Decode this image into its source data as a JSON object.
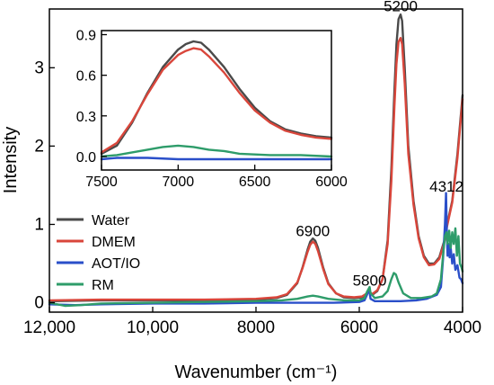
{
  "chart_data": [
    {
      "type": "line",
      "xlabel": "Wavenumber (cm⁻¹)",
      "ylabel": "Intensity",
      "xlim": [
        12000,
        4000
      ],
      "ylim": [
        -0.12,
        3.75
      ],
      "x_reversed": true,
      "x_ticks": [
        12000,
        10000,
        8000,
        6000,
        4000
      ],
      "x_tick_labels": [
        "12,000",
        "10,000",
        "8000",
        "6000",
        "4000"
      ],
      "y_ticks": [
        0,
        1,
        2,
        3
      ],
      "y_tick_labels": [
        "0",
        "1",
        "2",
        "3"
      ],
      "annotations": [
        {
          "text": "6900",
          "x": 6900,
          "y": 0.85
        },
        {
          "text": "5800",
          "x": 5800,
          "y": 0.22
        },
        {
          "text": "5200",
          "x": 5200,
          "y": 3.72
        },
        {
          "text": "4312",
          "x": 4312,
          "y": 1.42
        }
      ],
      "legend": {
        "position": "left",
        "entries": [
          "Water",
          "DMEM",
          "AOT/IO",
          "RM"
        ]
      },
      "series": [
        {
          "name": "Water",
          "color": "#4a4a4a",
          "points": [
            [
              12000,
              0.02
            ],
            [
              11000,
              0.03
            ],
            [
              10000,
              0.03
            ],
            [
              9000,
              0.03
            ],
            [
              8000,
              0.04
            ],
            [
              7600,
              0.06
            ],
            [
              7400,
              0.1
            ],
            [
              7200,
              0.25
            ],
            [
              7100,
              0.45
            ],
            [
              7000,
              0.68
            ],
            [
              6950,
              0.78
            ],
            [
              6900,
              0.82
            ],
            [
              6850,
              0.79
            ],
            [
              6800,
              0.7
            ],
            [
              6700,
              0.45
            ],
            [
              6600,
              0.25
            ],
            [
              6450,
              0.12
            ],
            [
              6300,
              0.07
            ],
            [
              6100,
              0.06
            ],
            [
              5950,
              0.07
            ],
            [
              5850,
              0.12
            ],
            [
              5800,
              0.14
            ],
            [
              5750,
              0.1
            ],
            [
              5650,
              0.15
            ],
            [
              5550,
              0.3
            ],
            [
              5450,
              0.8
            ],
            [
              5380,
              1.7
            ],
            [
              5320,
              2.7
            ],
            [
              5280,
              3.3
            ],
            [
              5240,
              3.62
            ],
            [
              5200,
              3.68
            ],
            [
              5170,
              3.6
            ],
            [
              5120,
              3.0
            ],
            [
              5050,
              2.0
            ],
            [
              4950,
              1.3
            ],
            [
              4850,
              0.85
            ],
            [
              4750,
              0.6
            ],
            [
              4650,
              0.5
            ],
            [
              4550,
              0.5
            ],
            [
              4450,
              0.58
            ],
            [
              4350,
              0.8
            ],
            [
              4300,
              1.0
            ],
            [
              4200,
              1.3
            ],
            [
              4100,
              1.9
            ],
            [
              4000,
              2.65
            ]
          ]
        },
        {
          "name": "DMEM",
          "color": "#d9463b",
          "points": [
            [
              12000,
              0.03
            ],
            [
              11000,
              0.04
            ],
            [
              10000,
              0.04
            ],
            [
              9000,
              0.04
            ],
            [
              8000,
              0.05
            ],
            [
              7600,
              0.07
            ],
            [
              7400,
              0.11
            ],
            [
              7200,
              0.26
            ],
            [
              7100,
              0.44
            ],
            [
              7000,
              0.65
            ],
            [
              6950,
              0.74
            ],
            [
              6900,
              0.78
            ],
            [
              6850,
              0.75
            ],
            [
              6800,
              0.66
            ],
            [
              6700,
              0.43
            ],
            [
              6600,
              0.24
            ],
            [
              6450,
              0.12
            ],
            [
              6300,
              0.08
            ],
            [
              6100,
              0.07
            ],
            [
              5950,
              0.08
            ],
            [
              5850,
              0.12
            ],
            [
              5800,
              0.14
            ],
            [
              5750,
              0.11
            ],
            [
              5650,
              0.16
            ],
            [
              5550,
              0.3
            ],
            [
              5450,
              0.75
            ],
            [
              5380,
              1.55
            ],
            [
              5320,
              2.5
            ],
            [
              5280,
              3.05
            ],
            [
              5240,
              3.33
            ],
            [
              5200,
              3.38
            ],
            [
              5170,
              3.3
            ],
            [
              5120,
              2.8
            ],
            [
              5050,
              1.9
            ],
            [
              4950,
              1.25
            ],
            [
              4850,
              0.82
            ],
            [
              4750,
              0.58
            ],
            [
              4650,
              0.48
            ],
            [
              4550,
              0.49
            ],
            [
              4450,
              0.56
            ],
            [
              4350,
              0.78
            ],
            [
              4300,
              0.98
            ],
            [
              4200,
              1.28
            ],
            [
              4100,
              1.85
            ],
            [
              4000,
              2.6
            ]
          ]
        },
        {
          "name": "AOT/IO",
          "color": "#2a4fc9",
          "points": [
            [
              12000,
              -0.02
            ],
            [
              11500,
              -0.03
            ],
            [
              11000,
              -0.02
            ],
            [
              10000,
              -0.01
            ],
            [
              9000,
              -0.01
            ],
            [
              8000,
              0.0
            ],
            [
              7000,
              0.0
            ],
            [
              6500,
              0.0
            ],
            [
              6000,
              0.01
            ],
            [
              5900,
              0.03
            ],
            [
              5850,
              0.1
            ],
            [
              5820,
              0.16
            ],
            [
              5800,
              0.13
            ],
            [
              5780,
              0.05
            ],
            [
              5700,
              0.02
            ],
            [
              5500,
              0.02
            ],
            [
              5200,
              0.02
            ],
            [
              4900,
              0.03
            ],
            [
              4700,
              0.05
            ],
            [
              4500,
              0.1
            ],
            [
              4420,
              0.2
            ],
            [
              4380,
              0.55
            ],
            [
              4340,
              1.0
            ],
            [
              4320,
              1.4
            ],
            [
              4305,
              0.9
            ],
            [
              4290,
              0.6
            ],
            [
              4270,
              0.75
            ],
            [
              4250,
              0.58
            ],
            [
              4230,
              0.7
            ],
            [
              4200,
              0.5
            ],
            [
              4170,
              0.62
            ],
            [
              4140,
              0.42
            ],
            [
              4100,
              0.48
            ],
            [
              4060,
              0.32
            ],
            [
              4030,
              0.3
            ],
            [
              4000,
              0.25
            ]
          ]
        },
        {
          "name": "RM",
          "color": "#2e9c6a",
          "points": [
            [
              12000,
              0.0
            ],
            [
              11700,
              -0.04
            ],
            [
              11400,
              -0.03
            ],
            [
              11000,
              -0.01
            ],
            [
              10000,
              0.0
            ],
            [
              9000,
              0.01
            ],
            [
              8000,
              0.02
            ],
            [
              7500,
              0.03
            ],
            [
              7200,
              0.05
            ],
            [
              7000,
              0.08
            ],
            [
              6900,
              0.09
            ],
            [
              6800,
              0.08
            ],
            [
              6600,
              0.05
            ],
            [
              6300,
              0.03
            ],
            [
              6000,
              0.03
            ],
            [
              5900,
              0.06
            ],
            [
              5850,
              0.14
            ],
            [
              5800,
              0.2
            ],
            [
              5780,
              0.12
            ],
            [
              5700,
              0.06
            ],
            [
              5550,
              0.08
            ],
            [
              5450,
              0.15
            ],
            [
              5380,
              0.3
            ],
            [
              5330,
              0.38
            ],
            [
              5290,
              0.36
            ],
            [
              5240,
              0.26
            ],
            [
              5150,
              0.12
            ],
            [
              5000,
              0.06
            ],
            [
              4800,
              0.06
            ],
            [
              4600,
              0.08
            ],
            [
              4500,
              0.12
            ],
            [
              4420,
              0.3
            ],
            [
              4380,
              0.6
            ],
            [
              4340,
              0.85
            ],
            [
              4310,
              0.9
            ],
            [
              4290,
              0.75
            ],
            [
              4260,
              0.92
            ],
            [
              4230,
              0.7
            ],
            [
              4200,
              0.9
            ],
            [
              4170,
              0.75
            ],
            [
              4140,
              0.95
            ],
            [
              4110,
              0.6
            ],
            [
              4080,
              0.85
            ],
            [
              4050,
              0.5
            ],
            [
              4020,
              0.45
            ],
            [
              4000,
              0.4
            ]
          ]
        }
      ]
    },
    {
      "type": "line",
      "xlim": [
        7500,
        6000
      ],
      "ylim": [
        -0.1,
        0.93
      ],
      "x_reversed": true,
      "x_ticks": [
        7500,
        7000,
        6500,
        6000
      ],
      "x_tick_labels": [
        "7500",
        "7000",
        "6500",
        "6000"
      ],
      "y_ticks": [
        0.0,
        0.3,
        0.6,
        0.9
      ],
      "y_tick_labels": [
        "0.0",
        "0.3",
        "0.6",
        "0.9"
      ],
      "series": [
        {
          "name": "Water",
          "color": "#4a4a4a",
          "points": [
            [
              7500,
              0.02
            ],
            [
              7400,
              0.08
            ],
            [
              7300,
              0.25
            ],
            [
              7200,
              0.47
            ],
            [
              7100,
              0.66
            ],
            [
              7000,
              0.79
            ],
            [
              6950,
              0.83
            ],
            [
              6900,
              0.85
            ],
            [
              6850,
              0.84
            ],
            [
              6800,
              0.79
            ],
            [
              6700,
              0.66
            ],
            [
              6600,
              0.5
            ],
            [
              6500,
              0.36
            ],
            [
              6400,
              0.26
            ],
            [
              6300,
              0.2
            ],
            [
              6200,
              0.17
            ],
            [
              6100,
              0.15
            ],
            [
              6000,
              0.14
            ]
          ]
        },
        {
          "name": "DMEM",
          "color": "#d9463b",
          "points": [
            [
              7500,
              0.03
            ],
            [
              7400,
              0.1
            ],
            [
              7300,
              0.26
            ],
            [
              7200,
              0.46
            ],
            [
              7100,
              0.64
            ],
            [
              7000,
              0.75
            ],
            [
              6950,
              0.78
            ],
            [
              6900,
              0.8
            ],
            [
              6850,
              0.79
            ],
            [
              6800,
              0.74
            ],
            [
              6700,
              0.62
            ],
            [
              6600,
              0.47
            ],
            [
              6500,
              0.34
            ],
            [
              6400,
              0.25
            ],
            [
              6300,
              0.19
            ],
            [
              6200,
              0.16
            ],
            [
              6100,
              0.14
            ],
            [
              6000,
              0.13
            ]
          ]
        },
        {
          "name": "AOT/IO",
          "color": "#2a4fc9",
          "points": [
            [
              7500,
              -0.02
            ],
            [
              7400,
              -0.01
            ],
            [
              7200,
              -0.01
            ],
            [
              7000,
              -0.02
            ],
            [
              6800,
              -0.02
            ],
            [
              6600,
              -0.02
            ],
            [
              6400,
              -0.02
            ],
            [
              6200,
              -0.02
            ],
            [
              6000,
              -0.02
            ]
          ]
        },
        {
          "name": "RM",
          "color": "#2e9c6a",
          "points": [
            [
              7500,
              0.0
            ],
            [
              7400,
              0.01
            ],
            [
              7300,
              0.03
            ],
            [
              7200,
              0.05
            ],
            [
              7100,
              0.07
            ],
            [
              7000,
              0.08
            ],
            [
              6900,
              0.07
            ],
            [
              6800,
              0.05
            ],
            [
              6700,
              0.04
            ],
            [
              6600,
              0.02
            ],
            [
              6400,
              0.01
            ],
            [
              6200,
              0.01
            ],
            [
              6000,
              0.0
            ]
          ]
        }
      ]
    }
  ]
}
